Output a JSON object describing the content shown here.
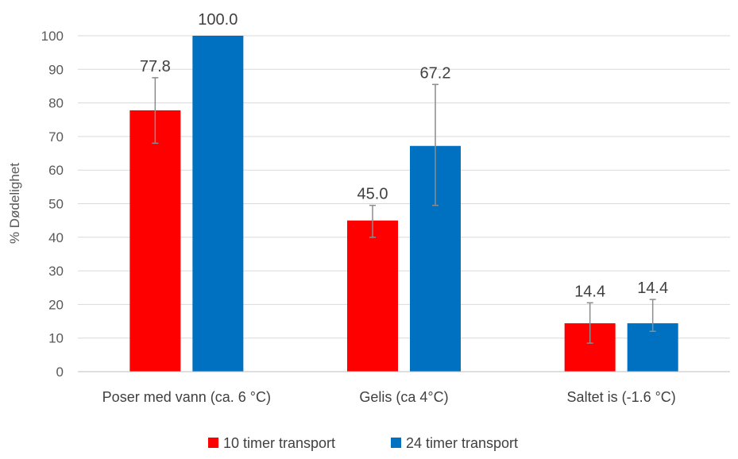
{
  "chart_data": {
    "type": "bar",
    "title": "",
    "xlabel": "",
    "ylabel": "% Dødelighet",
    "ylim": [
      0,
      100
    ],
    "yticks": [
      0,
      10,
      20,
      30,
      40,
      50,
      60,
      70,
      80,
      90,
      100
    ],
    "grid": true,
    "legend_position": "bottom",
    "categories": [
      "Poser med vann (ca. 6 °C)",
      "Gelis (ca 4°C)",
      "Saltet is (-1.6 °C)"
    ],
    "series": [
      {
        "name": "10 timer transport",
        "color": "#ff0000",
        "values": [
          77.8,
          45.0,
          14.4
        ],
        "labels": [
          "77.8",
          "45.0",
          "14.4"
        ],
        "error_low": [
          68,
          40,
          8.5
        ],
        "error_high": [
          87.5,
          49.5,
          20.5
        ]
      },
      {
        "name": "24 timer transport",
        "color": "#0070c0",
        "values": [
          100.0,
          67.2,
          14.4
        ],
        "labels": [
          "100.0",
          "67.2",
          "14.4"
        ],
        "error_low": [
          100,
          49.5,
          12
        ],
        "error_high": [
          100,
          85.5,
          21.5
        ]
      }
    ]
  }
}
